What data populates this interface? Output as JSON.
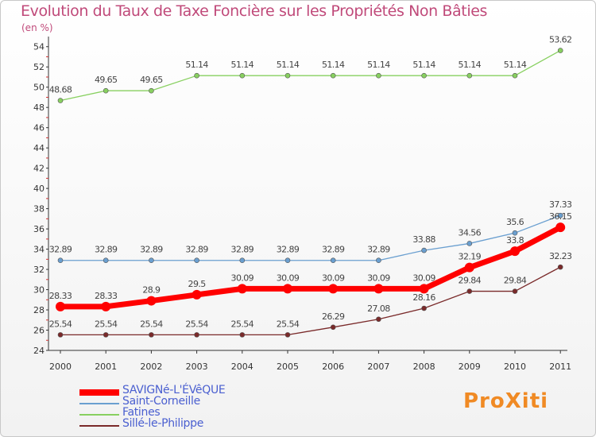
{
  "chart_data": {
    "type": "line",
    "title": "Evolution du Taux de Taxe Foncière sur les Propriétés Non Bâties",
    "ylabel": "(en %)",
    "xlabel": "",
    "x": [
      "2000",
      "2001",
      "2002",
      "2003",
      "2004",
      "2005",
      "2006",
      "2007",
      "2008",
      "2009",
      "2010",
      "2011"
    ],
    "ylim": [
      24,
      55
    ],
    "yticks": [
      24,
      26,
      28,
      30,
      32,
      34,
      36,
      38,
      40,
      42,
      44,
      46,
      48,
      50,
      52,
      54
    ],
    "series": [
      {
        "name": "SAVIGNé-L'ÉVêQUE",
        "color": "#ff0000",
        "values": [
          28.33,
          28.33,
          28.9,
          29.5,
          30.09,
          30.09,
          30.09,
          30.09,
          30.09,
          32.19,
          33.8,
          36.15
        ],
        "labels": [
          "28.33",
          "28.33",
          "28.9",
          "29.5",
          "30.09",
          "30.09",
          "30.09",
          "30.09",
          "30.09",
          "32.19",
          "33.8",
          "36.15"
        ]
      },
      {
        "name": "Saint-Corneille",
        "color": "#6a9fd0",
        "values": [
          32.89,
          32.89,
          32.89,
          32.89,
          32.89,
          32.89,
          32.89,
          32.89,
          33.88,
          34.56,
          35.6,
          37.33
        ],
        "labels": [
          "32.89",
          "32.89",
          "32.89",
          "32.89",
          "32.89",
          "32.89",
          "32.89",
          "32.89",
          "33.88",
          "34.56",
          "35.6",
          "37.33"
        ]
      },
      {
        "name": "Fatines",
        "color": "#88d060",
        "values": [
          48.68,
          49.65,
          49.65,
          51.14,
          51.14,
          51.14,
          51.14,
          51.14,
          51.14,
          51.14,
          51.14,
          53.62
        ],
        "labels": [
          "48.68",
          "49.65",
          "49.65",
          "51.14",
          "51.14",
          "51.14",
          "51.14",
          "51.14",
          "51.14",
          "51.14",
          "51.14",
          "53.62"
        ]
      },
      {
        "name": "Sillé-le-Philippe",
        "color": "#7a2a2a",
        "values": [
          25.54,
          25.54,
          25.54,
          25.54,
          25.54,
          25.54,
          26.29,
          27.08,
          28.16,
          29.84,
          29.84,
          32.23
        ],
        "labels": [
          "25.54",
          "25.54",
          "25.54",
          "25.54",
          "25.54",
          "25.54",
          "26.29",
          "27.08",
          "28.16",
          "29.84",
          "29.84",
          "32.23"
        ]
      }
    ],
    "legend_position": "bottom-left",
    "grid": false
  },
  "logo": {
    "text": "ProXiti"
  }
}
